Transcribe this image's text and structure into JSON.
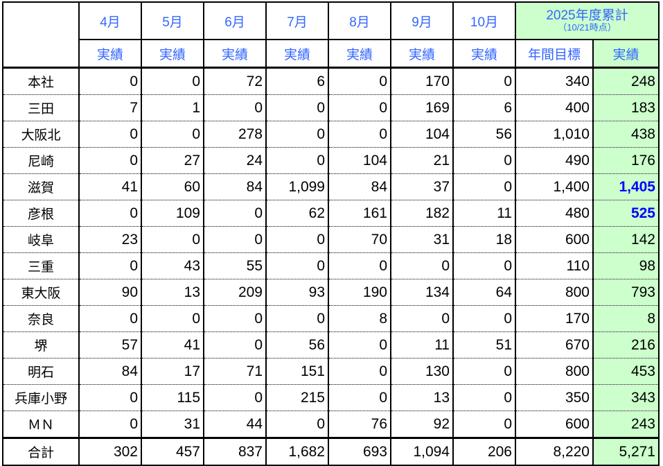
{
  "header": {
    "months": [
      "4月",
      "5月",
      "6月",
      "7月",
      "8月",
      "9月",
      "10月"
    ],
    "cumulative_title": "2025年度累計",
    "cumulative_sub": "（10/21時点）",
    "actual_label": "実績",
    "target_label": "年間目標"
  },
  "rows": [
    {
      "name": "本社",
      "v": [
        "0",
        "0",
        "72",
        "6",
        "0",
        "170",
        "0"
      ],
      "target": "340",
      "actual": "248",
      "highlight": false
    },
    {
      "name": "三田",
      "v": [
        "7",
        "1",
        "0",
        "0",
        "0",
        "169",
        "6"
      ],
      "target": "400",
      "actual": "183",
      "highlight": false
    },
    {
      "name": "大阪北",
      "v": [
        "0",
        "0",
        "278",
        "0",
        "0",
        "104",
        "56"
      ],
      "target": "1,010",
      "actual": "438",
      "highlight": false
    },
    {
      "name": "尼崎",
      "v": [
        "0",
        "27",
        "24",
        "0",
        "104",
        "21",
        "0"
      ],
      "target": "490",
      "actual": "176",
      "highlight": false
    },
    {
      "name": "滋賀",
      "v": [
        "41",
        "60",
        "84",
        "1,099",
        "84",
        "37",
        "0"
      ],
      "target": "1,400",
      "actual": "1,405",
      "highlight": true
    },
    {
      "name": "彦根",
      "v": [
        "0",
        "109",
        "0",
        "62",
        "161",
        "182",
        "11"
      ],
      "target": "480",
      "actual": "525",
      "highlight": true
    },
    {
      "name": "岐阜",
      "v": [
        "23",
        "0",
        "0",
        "0",
        "70",
        "31",
        "18"
      ],
      "target": "600",
      "actual": "142",
      "highlight": false
    },
    {
      "name": "三重",
      "v": [
        "0",
        "43",
        "55",
        "0",
        "0",
        "0",
        "0"
      ],
      "target": "110",
      "actual": "98",
      "highlight": false
    },
    {
      "name": "東大阪",
      "v": [
        "90",
        "13",
        "209",
        "93",
        "190",
        "134",
        "64"
      ],
      "target": "800",
      "actual": "793",
      "highlight": false
    },
    {
      "name": "奈良",
      "v": [
        "0",
        "0",
        "0",
        "0",
        "8",
        "0",
        "0"
      ],
      "target": "170",
      "actual": "8",
      "highlight": false
    },
    {
      "name": "堺",
      "v": [
        "57",
        "41",
        "0",
        "56",
        "0",
        "11",
        "51"
      ],
      "target": "670",
      "actual": "216",
      "highlight": false
    },
    {
      "name": "明石",
      "v": [
        "84",
        "17",
        "71",
        "151",
        "0",
        "130",
        "0"
      ],
      "target": "800",
      "actual": "453",
      "highlight": false
    },
    {
      "name": "兵庫小野",
      "v": [
        "0",
        "115",
        "0",
        "215",
        "0",
        "13",
        "0"
      ],
      "target": "350",
      "actual": "343",
      "highlight": false
    },
    {
      "name": "ＭＮ",
      "v": [
        "0",
        "31",
        "44",
        "0",
        "76",
        "92",
        "0"
      ],
      "target": "600",
      "actual": "243",
      "highlight": false
    }
  ],
  "total": {
    "name": "合計",
    "v": [
      "302",
      "457",
      "837",
      "1,682",
      "693",
      "1,094",
      "206"
    ],
    "target": "8,220",
    "actual": "5,271"
  },
  "colors": {
    "header_text": "#3366ff",
    "cumulative_bg": "#ccffcc",
    "highlight_text": "#0000ff"
  }
}
